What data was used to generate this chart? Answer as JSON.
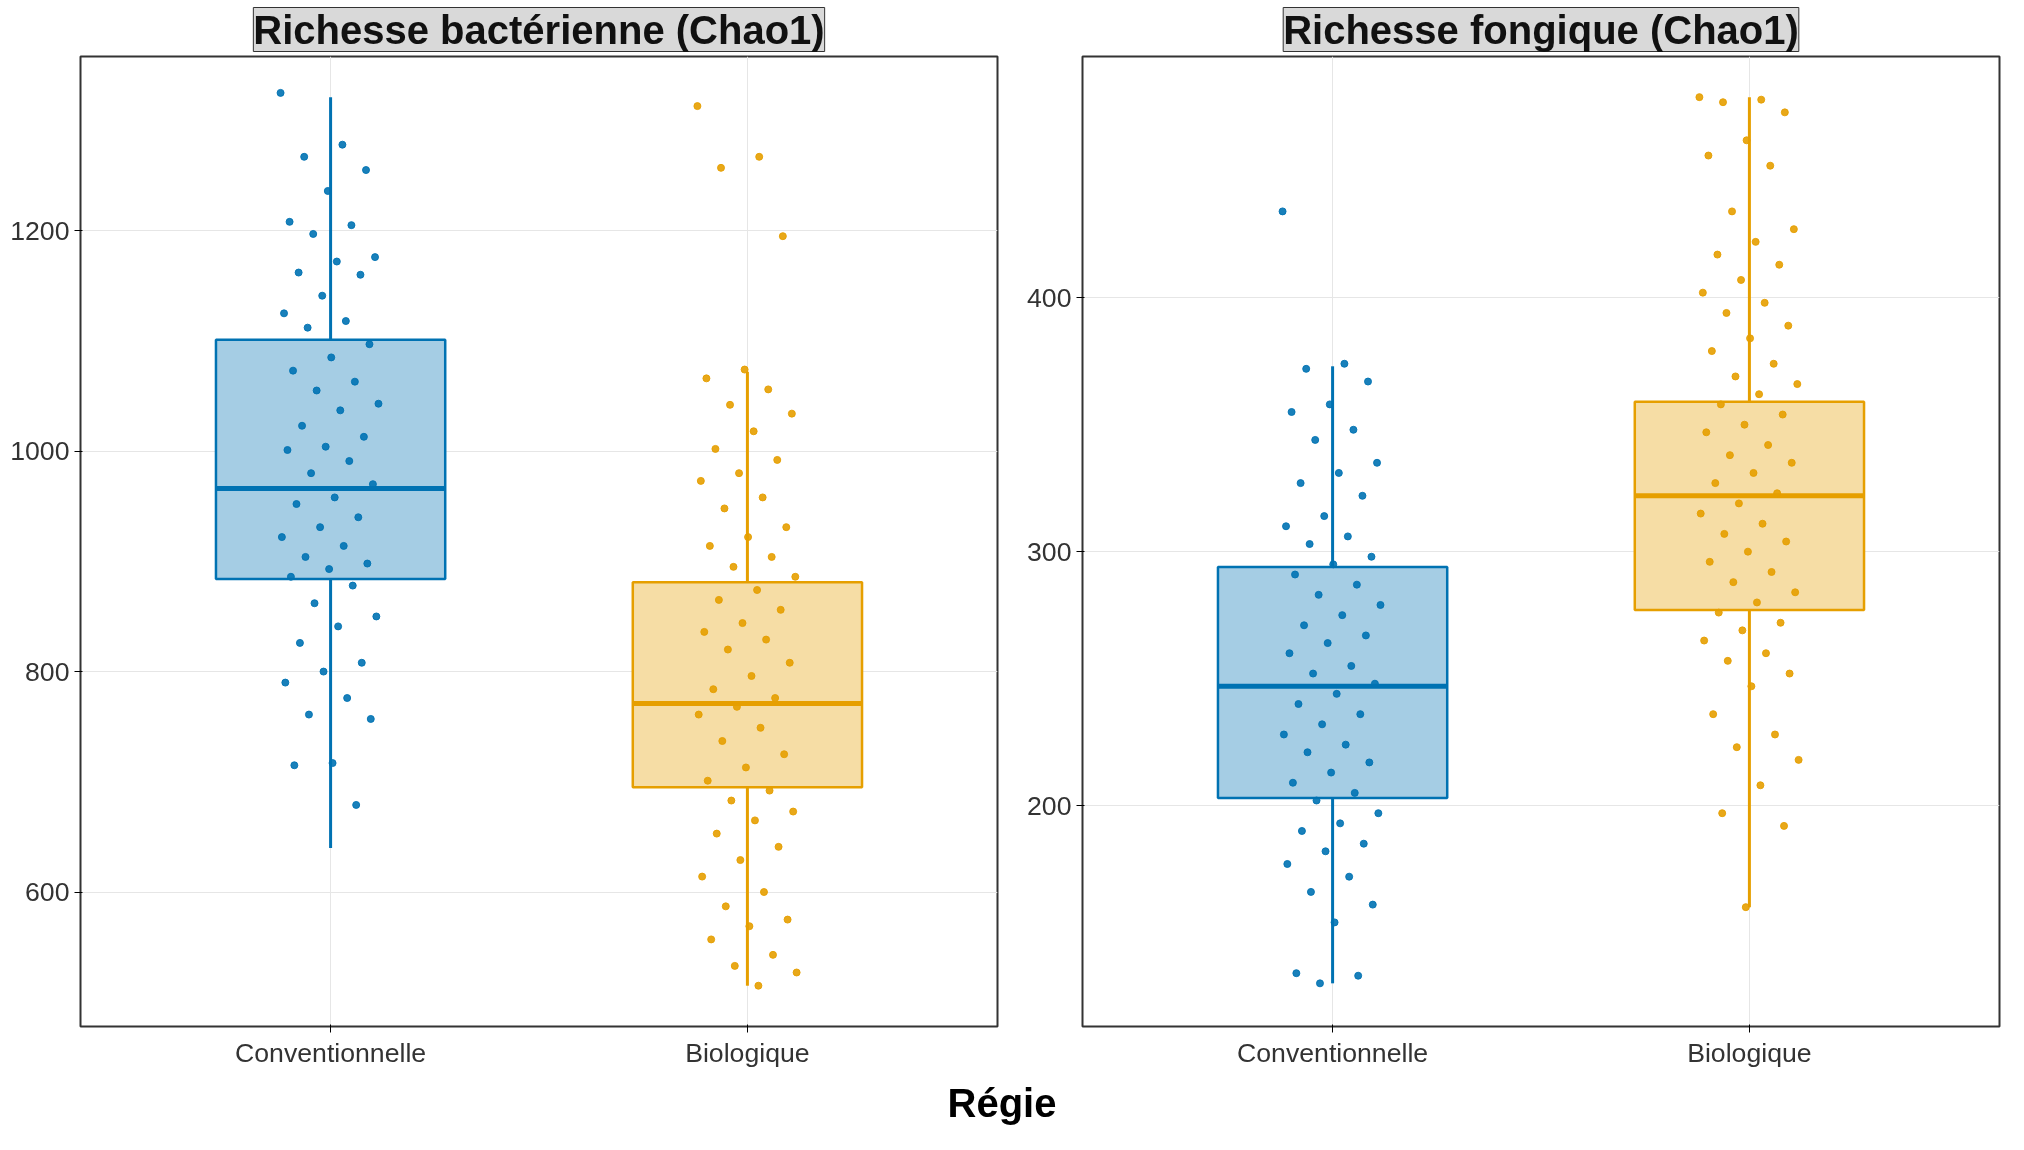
{
  "chart_data": [
    {
      "type": "box",
      "title": "Richesse bactérienne (Chao1)",
      "xlabel": "Régie",
      "categories": [
        "Conventionnelle",
        "Biologique"
      ],
      "ylim": [
        478,
        1358
      ],
      "yticks": [
        600,
        800,
        1000,
        1200
      ],
      "grid": true,
      "series": [
        {
          "color": "#0072b2",
          "boxes": [
            {
              "low": 640,
              "q1": 884,
              "median": 966,
              "q3": 1101,
              "high": 1321
            },
            null
          ]
        },
        {
          "color": "#e69f00",
          "boxes": [
            null,
            {
              "low": 515,
              "q1": 695,
              "median": 771,
              "q3": 881,
              "high": 1072
            }
          ]
        },
        {
          "type": "scatter",
          "color": "#0072b2",
          "x": [
            "Conventionnelle",
            "Conventionnelle",
            "Conventionnelle",
            "Conventionnelle",
            "Conventionnelle",
            "Conventionnelle",
            "Conventionnelle",
            "Conventionnelle",
            "Conventionnelle",
            "Conventionnelle",
            "Conventionnelle",
            "Conventionnelle",
            "Conventionnelle",
            "Conventionnelle",
            "Conventionnelle",
            "Conventionnelle",
            "Conventionnelle",
            "Conventionnelle",
            "Conventionnelle",
            "Conventionnelle",
            "Conventionnelle",
            "Conventionnelle",
            "Conventionnelle",
            "Conventionnelle",
            "Conventionnelle",
            "Conventionnelle",
            "Conventionnelle",
            "Conventionnelle",
            "Conventionnelle",
            "Conventionnelle",
            "Conventionnelle",
            "Conventionnelle",
            "Conventionnelle",
            "Conventionnelle",
            "Conventionnelle",
            "Conventionnelle",
            "Conventionnelle",
            "Conventionnelle",
            "Conventionnelle",
            "Conventionnelle",
            "Conventionnelle",
            "Conventionnelle",
            "Conventionnelle",
            "Conventionnelle",
            "Conventionnelle",
            "Conventionnelle",
            "Conventionnelle",
            "Conventionnelle",
            "Conventionnelle",
            "Conventionnelle",
            "Conventionnelle",
            "Conventionnelle",
            "Conventionnelle",
            "Conventionnelle"
          ],
          "values": [
            1325,
            1278,
            1267,
            1255,
            1236,
            1208,
            1205,
            1197,
            1176,
            1172,
            1162,
            1160,
            1141,
            1125,
            1118,
            1112,
            1097,
            1085,
            1073,
            1063,
            1055,
            1043,
            1037,
            1023,
            1013,
            1004,
            1001,
            991,
            980,
            970,
            958,
            952,
            940,
            931,
            922,
            914,
            904,
            898,
            893,
            886,
            878,
            862,
            850,
            841,
            826,
            808,
            800,
            790,
            776,
            761,
            757,
            717,
            715,
            679
          ]
        },
        {
          "type": "scatter",
          "color": "#e69f00",
          "x": [
            "Biologique",
            "Biologique",
            "Biologique",
            "Biologique",
            "Biologique",
            "Biologique",
            "Biologique",
            "Biologique",
            "Biologique",
            "Biologique",
            "Biologique",
            "Biologique",
            "Biologique",
            "Biologique",
            "Biologique",
            "Biologique",
            "Biologique",
            "Biologique",
            "Biologique",
            "Biologique",
            "Biologique",
            "Biologique",
            "Biologique",
            "Biologique",
            "Biologique",
            "Biologique",
            "Biologique",
            "Biologique",
            "Biologique",
            "Biologique",
            "Biologique",
            "Biologique",
            "Biologique",
            "Biologique",
            "Biologique",
            "Biologique",
            "Biologique",
            "Biologique",
            "Biologique",
            "Biologique",
            "Biologique",
            "Biologique",
            "Biologique",
            "Biologique",
            "Biologique",
            "Biologique",
            "Biologique",
            "Biologique",
            "Biologique",
            "Biologique",
            "Biologique",
            "Biologique",
            "Biologique",
            "Biologique",
            "Biologique",
            "Biologique",
            "Biologique"
          ],
          "values": [
            1313,
            1267,
            1257,
            1195,
            1074,
            1066,
            1056,
            1042,
            1034,
            1018,
            1002,
            992,
            980,
            973,
            958,
            948,
            931,
            922,
            914,
            904,
            895,
            886,
            874,
            865,
            856,
            844,
            836,
            829,
            820,
            808,
            796,
            784,
            776,
            768,
            761,
            749,
            737,
            725,
            713,
            701,
            692,
            683,
            673,
            665,
            653,
            641,
            629,
            614,
            600,
            587,
            575,
            569,
            557,
            543,
            533,
            527,
            515
          ]
        }
      ]
    },
    {
      "type": "box",
      "title": "Richesse fongique (Chao1)",
      "categories": [
        "Conventionnelle",
        "Biologique"
      ],
      "ylim": [
        113,
        495
      ],
      "yticks": [
        200,
        300,
        400
      ],
      "grid": true,
      "series": [
        {
          "color": "#0072b2",
          "boxes": [
            {
              "low": 130,
              "q1": 203,
              "median": 247,
              "q3": 294,
              "high": 373
            },
            null
          ]
        },
        {
          "color": "#e69f00",
          "boxes": [
            null,
            {
              "low": 160,
              "q1": 277,
              "median": 322,
              "q3": 359,
              "high": 479
            }
          ]
        },
        {
          "type": "scatter",
          "color": "#0072b2",
          "x": [
            "Conventionnelle",
            "Conventionnelle",
            "Conventionnelle",
            "Conventionnelle",
            "Conventionnelle",
            "Conventionnelle",
            "Conventionnelle",
            "Conventionnelle",
            "Conventionnelle",
            "Conventionnelle",
            "Conventionnelle",
            "Conventionnelle",
            "Conventionnelle",
            "Conventionnelle",
            "Conventionnelle",
            "Conventionnelle",
            "Conventionnelle",
            "Conventionnelle",
            "Conventionnelle",
            "Conventionnelle",
            "Conventionnelle",
            "Conventionnelle",
            "Conventionnelle",
            "Conventionnelle",
            "Conventionnelle",
            "Conventionnelle",
            "Conventionnelle",
            "Conventionnelle",
            "Conventionnelle",
            "Conventionnelle",
            "Conventionnelle",
            "Conventionnelle",
            "Conventionnelle",
            "Conventionnelle",
            "Conventionnelle",
            "Conventionnelle",
            "Conventionnelle",
            "Conventionnelle",
            "Conventionnelle",
            "Conventionnelle",
            "Conventionnelle",
            "Conventionnelle",
            "Conventionnelle",
            "Conventionnelle",
            "Conventionnelle",
            "Conventionnelle",
            "Conventionnelle",
            "Conventionnelle",
            "Conventionnelle",
            "Conventionnelle",
            "Conventionnelle",
            "Conventionnelle",
            "Conventionnelle",
            "Conventionnelle",
            "Conventionnelle"
          ],
          "values": [
            434,
            374,
            372,
            367,
            358,
            355,
            348,
            344,
            335,
            331,
            327,
            322,
            314,
            310,
            306,
            303,
            298,
            295,
            291,
            287,
            283,
            279,
            275,
            271,
            267,
            264,
            260,
            255,
            252,
            248,
            244,
            240,
            236,
            232,
            228,
            224,
            221,
            217,
            213,
            209,
            205,
            202,
            197,
            193,
            190,
            185,
            182,
            177,
            172,
            166,
            161,
            154,
            134,
            133,
            130
          ]
        },
        {
          "type": "scatter",
          "color": "#e69f00",
          "x": [
            "Biologique",
            "Biologique",
            "Biologique",
            "Biologique",
            "Biologique",
            "Biologique",
            "Biologique",
            "Biologique",
            "Biologique",
            "Biologique",
            "Biologique",
            "Biologique",
            "Biologique",
            "Biologique",
            "Biologique",
            "Biologique",
            "Biologique",
            "Biologique",
            "Biologique",
            "Biologique",
            "Biologique",
            "Biologique",
            "Biologique",
            "Biologique",
            "Biologique",
            "Biologique",
            "Biologique",
            "Biologique",
            "Biologique",
            "Biologique",
            "Biologique",
            "Biologique",
            "Biologique",
            "Biologique",
            "Biologique",
            "Biologique",
            "Biologique",
            "Biologique",
            "Biologique",
            "Biologique",
            "Biologique",
            "Biologique",
            "Biologique",
            "Biologique",
            "Biologique",
            "Biologique",
            "Biologique",
            "Biologique",
            "Biologique",
            "Biologique",
            "Biologique",
            "Biologique",
            "Biologique",
            "Biologique",
            "Biologique",
            "Biologique",
            "Biologique",
            "Biologique",
            "Biologique",
            "Biologique"
          ],
          "values": [
            479,
            478,
            477,
            473,
            462,
            456,
            452,
            434,
            427,
            422,
            417,
            413,
            407,
            402,
            398,
            394,
            389,
            384,
            379,
            374,
            369,
            366,
            362,
            358,
            354,
            350,
            347,
            342,
            338,
            335,
            331,
            327,
            323,
            319,
            315,
            311,
            307,
            304,
            300,
            296,
            292,
            288,
            284,
            280,
            276,
            272,
            269,
            265,
            260,
            257,
            252,
            247,
            236,
            228,
            223,
            218,
            208,
            197,
            192,
            160
          ]
        }
      ]
    }
  ]
}
